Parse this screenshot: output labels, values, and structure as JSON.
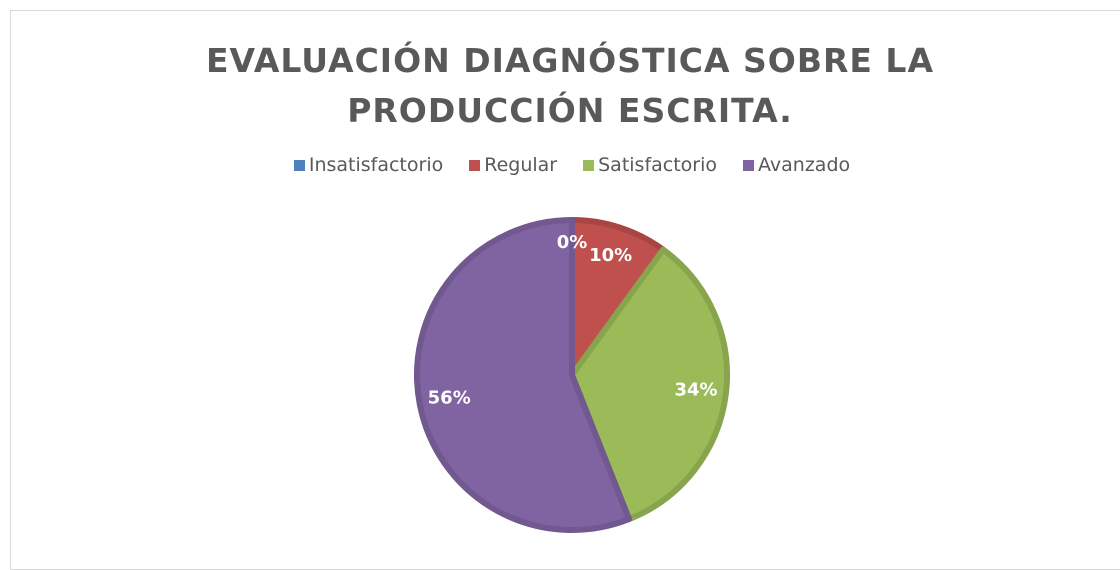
{
  "chart_data": {
    "type": "pie",
    "title": "EVALUACIÓN DIAGNÓSTICA SOBRE LA PRODUCCIÓN ESCRITA.",
    "categories": [
      "Insatisfactorio",
      "Regular",
      "Satisfactorio",
      "Avanzado"
    ],
    "values": [
      0,
      10,
      34,
      56
    ],
    "value_labels": [
      "0%",
      "10%",
      "34%",
      "56%"
    ],
    "colors": [
      "#4f81bd",
      "#c0504d",
      "#9bbb59",
      "#8064a2"
    ],
    "legend": "top"
  }
}
